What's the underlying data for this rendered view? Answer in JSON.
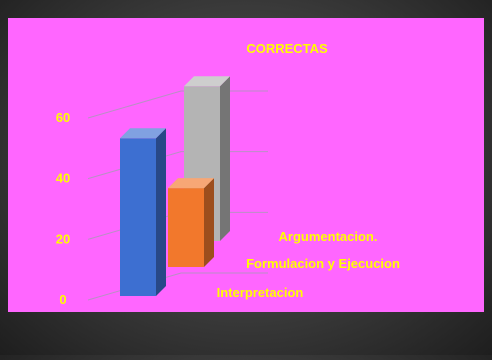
{
  "chart_data": {
    "type": "bar",
    "title": "CORRECTAS",
    "categories": [
      "Interpretacion",
      "Formulacion y Ejecucion",
      "Argumentacion."
    ],
    "values": [
      52,
      26,
      51
    ],
    "ylim": [
      0,
      60
    ],
    "y_ticks": [
      0,
      20,
      40,
      60
    ],
    "grid": true,
    "legend": "none",
    "colors": {
      "plot_background": "#ff66ff",
      "text": "#ffff00",
      "gridline": "#b98fc4",
      "series": [
        "#3d6fd1",
        "#f2782c",
        "#b4b4b4"
      ]
    }
  }
}
